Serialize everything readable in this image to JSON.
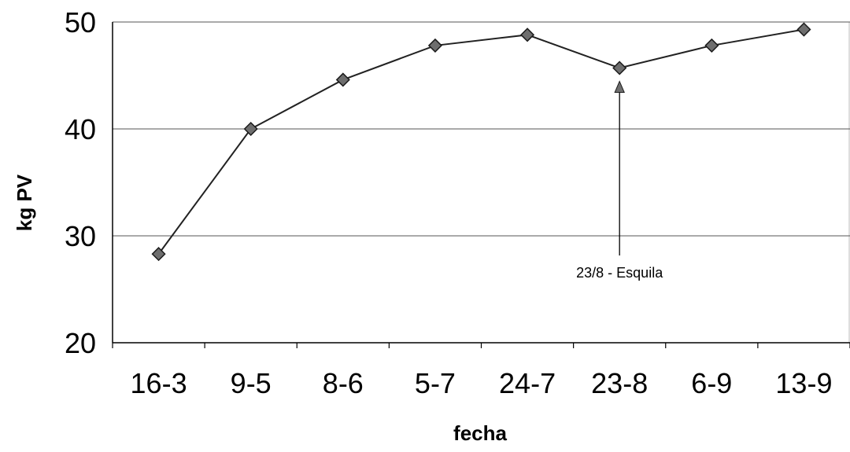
{
  "chart_data": {
    "type": "line",
    "categories": [
      "16-3",
      "9-5",
      "8-6",
      "5-7",
      "24-7",
      "23-8",
      "6-9",
      "13-9"
    ],
    "values": [
      28.3,
      40.0,
      44.6,
      47.8,
      48.8,
      45.7,
      47.8,
      49.3
    ],
    "xlabel": "fecha",
    "ylabel": "kg PV",
    "ylim": [
      20,
      50
    ],
    "yticks": [
      20,
      30,
      40,
      50
    ],
    "grid": true,
    "marker": "diamond",
    "colors": {
      "line": "#222222",
      "marker": "#6e6e6e",
      "grid": "#555555"
    },
    "annotations": [
      {
        "text": "23/8 - Esquila",
        "category": "23-8",
        "value": 45.7
      }
    ]
  }
}
